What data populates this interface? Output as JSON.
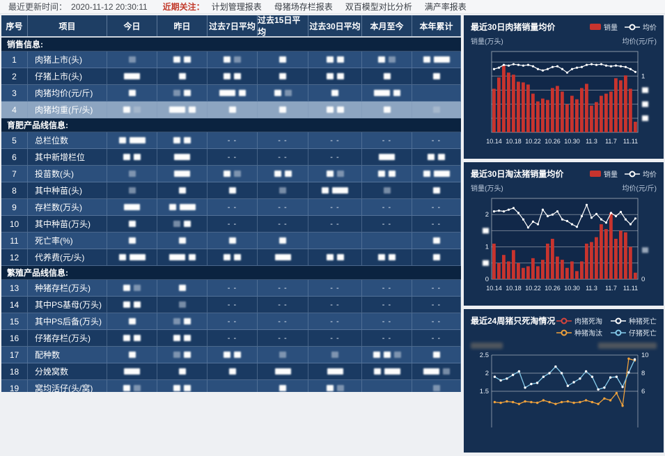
{
  "topbar": {
    "updated_label": "最近更新时间：",
    "updated_time": "2020-11-12 20:30:11",
    "focus_label": "近期关注：",
    "links": [
      "计划管理报表",
      "母猪场存栏报表",
      "双百模型对比分析",
      "满产率报表"
    ]
  },
  "table": {
    "headers": [
      "序号",
      "项目",
      "今日",
      "昨日",
      "过去7日平均",
      "过去15日平均",
      "过去30日平均",
      "本月至今",
      "本年累计"
    ],
    "dash": "- -",
    "selected_row_no": "4",
    "rows": [
      {
        "type": "section",
        "label": "销售信息:"
      },
      {
        "type": "row",
        "no": "1",
        "label": "肉猪上市(头)",
        "cells": [
          "g",
          "bb",
          "bg",
          "b",
          "bb",
          "bg",
          "bw"
        ]
      },
      {
        "type": "row",
        "no": "2",
        "label": "仔猪上市(头)",
        "cells": [
          "w",
          "b",
          "bb",
          "b",
          "bb",
          "b",
          "b"
        ]
      },
      {
        "type": "row",
        "no": "3",
        "label": "肉猪均价(元/斤)",
        "cells": [
          "b",
          "gb",
          "wb",
          "bg",
          "b",
          "wb",
          ""
        ]
      },
      {
        "type": "row",
        "no": "4",
        "label": "肉猪均重(斤/头)",
        "cells": [
          "bg",
          "wb",
          "b",
          "b",
          "bb",
          "b",
          "g"
        ]
      },
      {
        "type": "section",
        "label": "育肥产品线信息:"
      },
      {
        "type": "row",
        "no": "5",
        "label": "总栏位数",
        "cells": [
          "bw",
          "bb",
          "-",
          "-",
          "-",
          "-",
          "-"
        ]
      },
      {
        "type": "row",
        "no": "6",
        "label": "其中新增栏位",
        "cells": [
          "bb",
          "w",
          "-",
          "-",
          "-",
          "w",
          "bb"
        ]
      },
      {
        "type": "row",
        "no": "7",
        "label": "投苗数(头)",
        "cells": [
          "g",
          "w",
          "bg",
          "bb",
          "bg",
          "bb",
          "bw"
        ]
      },
      {
        "type": "row",
        "no": "8",
        "label": "其中种苗(头)",
        "cells": [
          "g",
          "b",
          "b",
          "g",
          "bw",
          "g",
          "b"
        ]
      },
      {
        "type": "row",
        "no": "9",
        "label": "存栏数(万头)",
        "cells": [
          "w",
          "bw",
          "-",
          "-",
          "-",
          "-",
          "-"
        ]
      },
      {
        "type": "row",
        "no": "10",
        "label": "其中种苗(万头)",
        "cells": [
          "b",
          "gb",
          "-",
          "-",
          "-",
          "-",
          "-"
        ]
      },
      {
        "type": "row",
        "no": "11",
        "label": "死亡率(%)",
        "cells": [
          "b",
          "b",
          "b",
          "b",
          "",
          "",
          "b"
        ]
      },
      {
        "type": "row",
        "no": "12",
        "label": "代养费(元/头)",
        "cells": [
          "bw",
          "wb",
          "bb",
          "w",
          "bb",
          "bb",
          "b"
        ]
      },
      {
        "type": "section",
        "label": "繁殖产品线信息:"
      },
      {
        "type": "row",
        "no": "13",
        "label": "种猪存栏(万头)",
        "cells": [
          "bg",
          "b",
          "-",
          "-",
          "-",
          "-",
          "-"
        ]
      },
      {
        "type": "row",
        "no": "14",
        "label": "其中PS基母(万头)",
        "cells": [
          "bb",
          "g",
          "-",
          "-",
          "-",
          "-",
          "-"
        ]
      },
      {
        "type": "row",
        "no": "15",
        "label": "其中PS后备(万头)",
        "cells": [
          "b",
          "gb",
          "-",
          "-",
          "-",
          "-",
          "-"
        ]
      },
      {
        "type": "row",
        "no": "16",
        "label": "仔猪存栏(万头)",
        "cells": [
          "bb",
          "bb",
          "-",
          "-",
          "-",
          "-",
          "-"
        ]
      },
      {
        "type": "row",
        "no": "17",
        "label": "配种数",
        "cells": [
          "b",
          "gb",
          "bb",
          "g",
          "g",
          "bbg",
          "b"
        ]
      },
      {
        "type": "row",
        "no": "18",
        "label": "分娩窝数",
        "cells": [
          "w",
          "b",
          "b",
          "w",
          "w",
          "bw",
          "wg"
        ]
      },
      {
        "type": "row",
        "no": "19",
        "label": "窝均活仔(头/窝)",
        "cells": [
          "bg",
          "bb",
          "",
          "b",
          "bg",
          "",
          "g"
        ]
      }
    ]
  },
  "charts": [
    {
      "title": "最近30日肉猪销量均价",
      "ylabel_left": "销量(万头)",
      "ylabel_right": "均价(元/斤)",
      "legend": [
        {
          "label": "销量"
        },
        {
          "label": "均价"
        }
      ]
    },
    {
      "title": "最近30日淘汰猪销量均价",
      "ylabel_left": "销量(万头)",
      "ylabel_right": "均价(元/斤)",
      "legend": [
        {
          "label": "销量"
        },
        {
          "label": "均价"
        }
      ]
    },
    {
      "title": "最近24周猪只死淘情况",
      "legend": [
        {
          "label": "肉猪死淘"
        },
        {
          "label": "种猪死亡"
        },
        {
          "label": "种猪淘汰"
        },
        {
          "label": "仔猪死亡"
        }
      ]
    }
  ],
  "chart_data": [
    {
      "type": "bar",
      "title": "最近30日肉猪销量均价",
      "categories": [
        "10.14",
        "10.15",
        "10.16",
        "10.17",
        "10.18",
        "10.19",
        "10.20",
        "10.21",
        "10.22",
        "10.23",
        "10.24",
        "10.25",
        "10.26",
        "10.27",
        "10.28",
        "10.29",
        "10.30",
        "10.31",
        "11.1",
        "11.2",
        "11.3",
        "11.4",
        "11.5",
        "11.6",
        "11.7",
        "11.8",
        "11.9",
        "11.10",
        "11.11",
        "11.12"
      ],
      "x_tick_labels": [
        "10.14",
        "10.18",
        "10.22",
        "10.26",
        "10.30",
        "11.3",
        "11.7",
        "11.11"
      ],
      "ylabel": "销量(万头)",
      "ylabel_right": "均价(元/斤)",
      "ylim": [
        0,
        1.15
      ],
      "right_axis_visible_tick": "1",
      "legend_position": "top-right",
      "grid": true,
      "series": [
        {
          "name": "销量",
          "kind": "bar",
          "color": "#c8342e",
          "values": [
            0.62,
            0.78,
            0.95,
            0.85,
            0.82,
            0.72,
            0.71,
            0.68,
            0.55,
            0.44,
            0.48,
            0.46,
            0.63,
            0.66,
            0.58,
            0.4,
            0.52,
            0.47,
            0.63,
            0.69,
            0.38,
            0.43,
            0.52,
            0.55,
            0.58,
            0.77,
            0.74,
            0.81,
            0.62,
            0.15
          ]
        },
        {
          "name": "均价",
          "kind": "line",
          "color": "#ffffff",
          "values": [
            0.9,
            0.92,
            0.96,
            0.95,
            0.97,
            0.96,
            0.95,
            0.96,
            0.94,
            0.9,
            0.88,
            0.9,
            0.93,
            0.94,
            0.9,
            0.85,
            0.9,
            0.92,
            0.93,
            0.96,
            0.97,
            0.96,
            0.97,
            0.95,
            0.94,
            0.95,
            0.94,
            0.93,
            0.9,
            0.86
          ]
        }
      ]
    },
    {
      "type": "bar",
      "title": "最近30日淘汰猪销量均价",
      "categories": [
        "10.14",
        "10.15",
        "10.16",
        "10.17",
        "10.18",
        "10.19",
        "10.20",
        "10.21",
        "10.22",
        "10.23",
        "10.24",
        "10.25",
        "10.26",
        "10.27",
        "10.28",
        "10.29",
        "10.30",
        "10.31",
        "11.1",
        "11.2",
        "11.3",
        "11.4",
        "11.5",
        "11.6",
        "11.7",
        "11.8",
        "11.9",
        "11.10",
        "11.11",
        "11.12"
      ],
      "x_tick_labels": [
        "10.14",
        "10.18",
        "10.22",
        "10.26",
        "10.30",
        "11.3",
        "11.7",
        "11.11"
      ],
      "ylabel": "销量(万头)",
      "ylabel_right": "均价(元/斤)",
      "ylim": [
        0,
        2.5
      ],
      "left_axis_ticks": [
        "0",
        "1",
        "2"
      ],
      "right_axis_ticks": [
        "0"
      ],
      "legend_position": "top-right",
      "grid": true,
      "series": [
        {
          "name": "销量",
          "kind": "bar",
          "color": "#c8342e",
          "values": [
            1.1,
            0.5,
            0.75,
            0.55,
            0.9,
            0.5,
            0.35,
            0.4,
            0.65,
            0.4,
            0.6,
            1.1,
            1.25,
            0.7,
            0.6,
            0.35,
            0.55,
            0.25,
            0.55,
            1.1,
            1.15,
            1.3,
            1.7,
            1.55,
            2.05,
            1.25,
            1.5,
            1.45,
            1.0,
            0.2
          ]
        },
        {
          "name": "均价",
          "kind": "line",
          "color": "#ffffff",
          "values": [
            2.1,
            2.12,
            2.1,
            2.15,
            2.2,
            2.05,
            1.85,
            1.6,
            1.78,
            1.7,
            2.15,
            1.95,
            2.0,
            2.1,
            1.85,
            1.8,
            1.7,
            1.62,
            1.95,
            2.3,
            1.9,
            2.02,
            1.85,
            1.75,
            2.05,
            1.95,
            2.08,
            1.85,
            1.7,
            1.88
          ]
        }
      ]
    },
    {
      "type": "line",
      "title": "最近24周猪只死淘情况",
      "x_count": 24,
      "ylim_left": [
        1.5,
        2.5
      ],
      "left_axis_ticks": [
        "2.5",
        "2",
        "1.5"
      ],
      "right_axis_ticks": [
        "10",
        "8",
        "6"
      ],
      "legend_position": "top-right",
      "grid": true,
      "series": [
        {
          "name": "肉猪死淘",
          "color": "#d9453c",
          "values": []
        },
        {
          "name": "种猪死亡",
          "color": "#ffffff",
          "values": []
        },
        {
          "name": "种猪淘汰",
          "color": "#f0a23c",
          "values": [
            1.2,
            1.18,
            1.22,
            1.2,
            1.15,
            1.22,
            1.2,
            1.18,
            1.25,
            1.2,
            1.15,
            1.2,
            1.22,
            1.18,
            1.2,
            1.25,
            1.2,
            1.15,
            1.3,
            1.25,
            1.45,
            1.1,
            2.4,
            2.35
          ]
        },
        {
          "name": "仔猪死亡",
          "color": "#86ccec",
          "values": [
            1.9,
            1.8,
            1.85,
            1.95,
            2.05,
            1.6,
            1.7,
            1.73,
            1.9,
            2.0,
            2.18,
            2.0,
            1.65,
            1.75,
            1.85,
            2.05,
            1.9,
            1.55,
            1.6,
            1.88,
            1.9,
            1.62,
            2.02,
            2.38
          ]
        }
      ]
    }
  ],
  "colors": {
    "accent_red": "#c8342e",
    "line_white": "#ffffff",
    "orange": "#f0a23c",
    "light_blue": "#86ccec",
    "panel_bg": "#152f51",
    "row_selected": "#8da5c1"
  }
}
